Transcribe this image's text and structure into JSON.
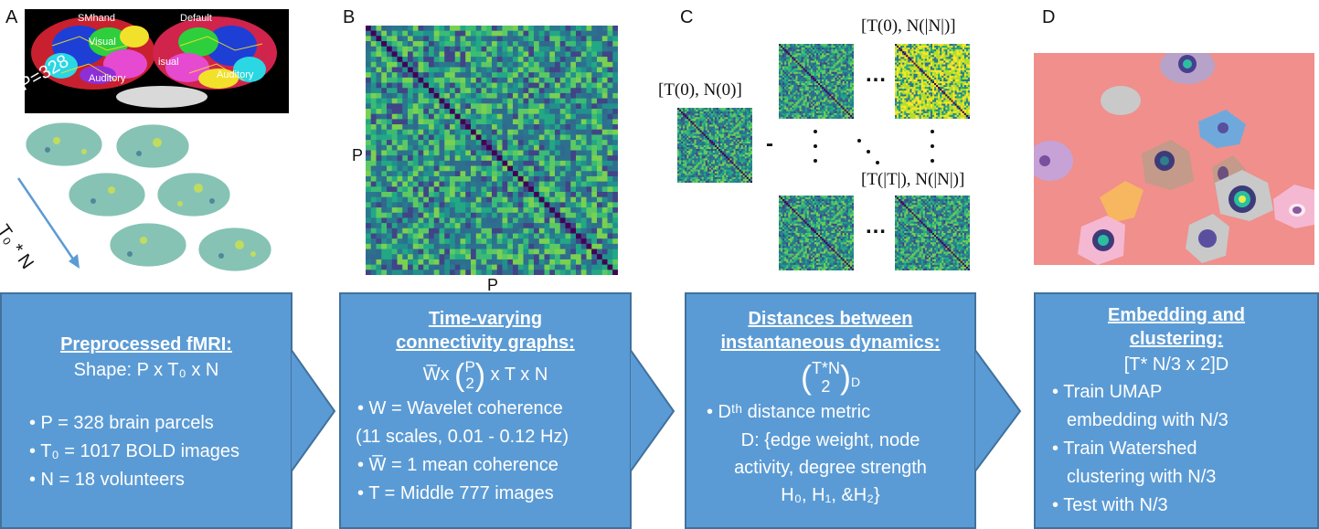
{
  "panels": {
    "a": {
      "letter": "A",
      "p_label": "P=328",
      "axis_label": "T₀ * N",
      "brain_labels": [
        "Default",
        "Visual",
        "Auditory",
        "SMhand",
        "Default",
        "Visual",
        "Auditory",
        "Vis",
        "isual"
      ]
    },
    "b": {
      "letter": "B",
      "row_label": "P",
      "col_label": "P"
    },
    "c": {
      "letter": "C",
      "label_00": "[T(0), N(0)]",
      "label_0n": "[T(0), N(|N|)]",
      "label_tn": "[T(|T|), N(|N|)]",
      "ellipsis": "…",
      "minus": "-"
    },
    "d": {
      "letter": "D"
    }
  },
  "boxes": [
    {
      "title": "Preprocessed fMRI:",
      "shape": "Shape: P x T₀ x N",
      "bullets": [
        "• P = 328 brain parcels",
        "• T₀ = 1017 BOLD images",
        "• N = 18 volunteers"
      ]
    },
    {
      "title1": "Time-varying",
      "title2": "connectivity graphs:",
      "formula": "W̅x (P 2) x T x N",
      "bullets": [
        "• W = Wavelet coherence",
        "(11 scales, 0.01 - 0.12 Hz)",
        "• W̅ = 1 mean coherence",
        "• T = Middle 777 images"
      ]
    },
    {
      "title1": "Distances between",
      "title2": "instantaneous dynamics:",
      "formula": "(T*N 2)D",
      "bullets": [
        "• Dᵗʰ distance metric",
        "D: {edge weight, node",
        "activity, degree strength",
        "H₀, H₁, &H₂}"
      ]
    },
    {
      "title1": "Embedding and",
      "title2": "clustering:",
      "formula": "[T* N/3 x 2]D",
      "bullets": [
        "• Train UMAP",
        "embedding with N/3",
        "• Train Watershed",
        "clustering with N/3",
        "• Test with N/3"
      ]
    }
  ],
  "colors": {
    "box_fill": "#5b9bd5",
    "box_border": "#41719c",
    "umap_bg": "#f08f8b"
  }
}
